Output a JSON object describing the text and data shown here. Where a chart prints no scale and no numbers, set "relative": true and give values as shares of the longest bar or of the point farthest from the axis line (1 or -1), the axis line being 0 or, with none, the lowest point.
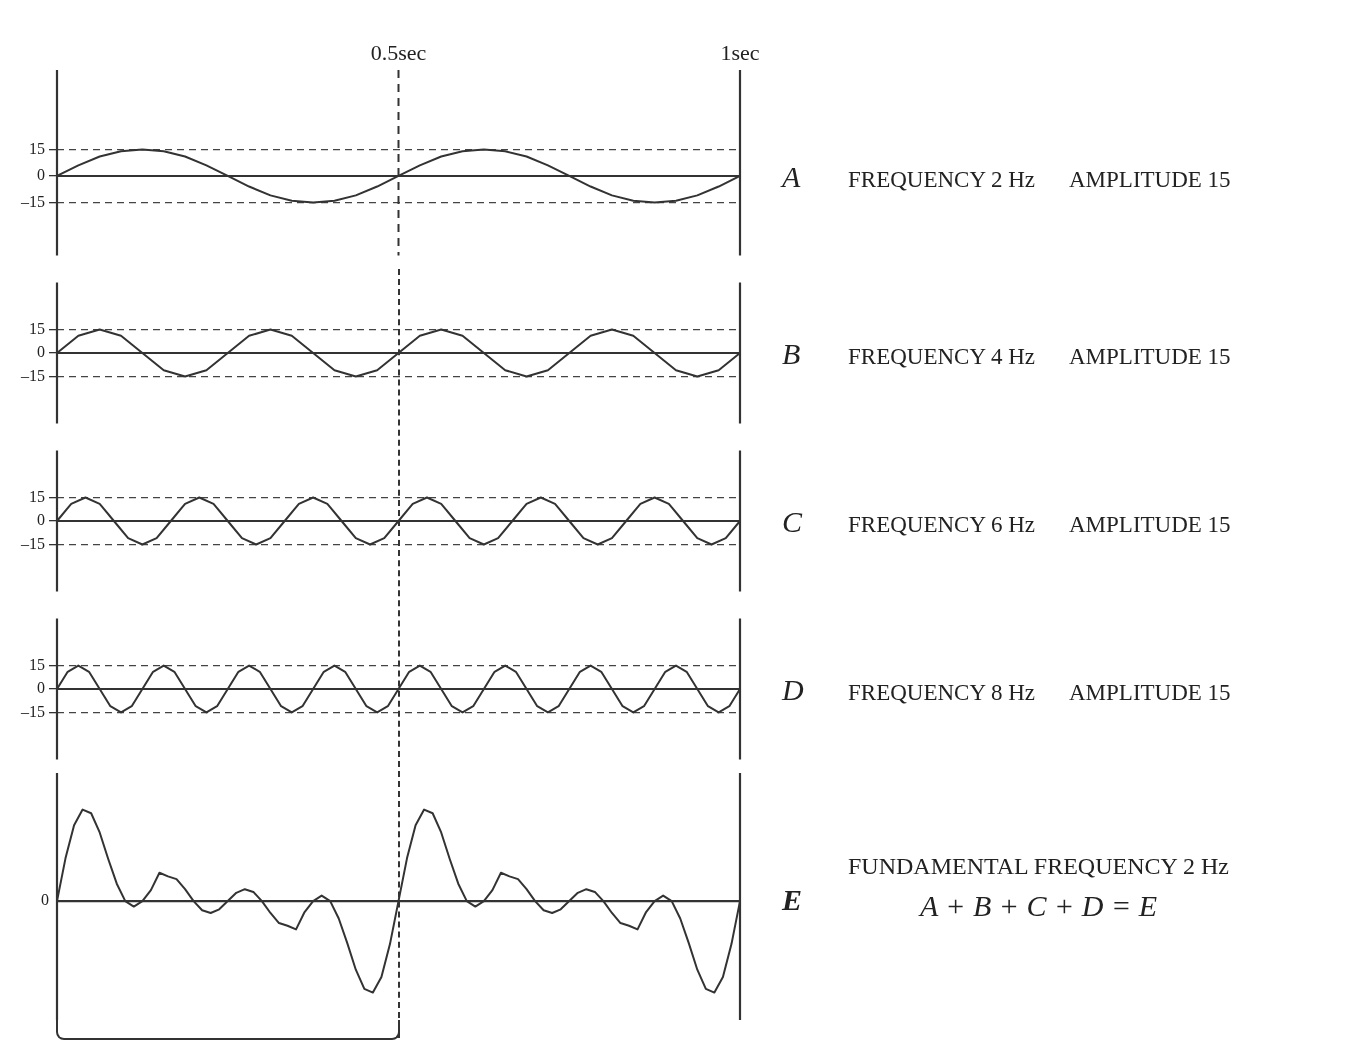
{
  "chart_data": [
    {
      "type": "line",
      "annotations": [
        "A",
        "FREQUENCY 2 Hz",
        "AMPLITUDE 15"
      ],
      "color": "#333333",
      "marker": "none",
      "line_style": "solid",
      "grid": "y",
      "xlim": [
        0,
        1
      ],
      "xticks": [
        {
          "value": 0.5,
          "label": "0.5sec"
        },
        {
          "value": 1,
          "label": "1sec"
        }
      ],
      "ylim": [
        -45,
        60
      ],
      "yticks": [
        {
          "value": -15,
          "label": "–15"
        },
        {
          "value": 0,
          "label": "0"
        },
        {
          "value": 15,
          "label": "15"
        }
      ],
      "ref_lines": [
        {
          "axis": "y",
          "value": 0,
          "line_style": "solid"
        },
        {
          "axis": "x",
          "value": 0.5,
          "line_style": "dashed"
        }
      ],
      "x": [
        0,
        0.03125,
        0.0625,
        0.09375,
        0.125,
        0.15625,
        0.1875,
        0.21875,
        0.25,
        0.28125,
        0.3125,
        0.34375,
        0.375,
        0.40625,
        0.4375,
        0.46875,
        0.5,
        0.53125,
        0.5625,
        0.59375,
        0.625,
        0.65625,
        0.6875,
        0.71875,
        0.75,
        0.78125,
        0.8125,
        0.84375,
        0.875,
        0.90625,
        0.9375,
        0.96875,
        1
      ],
      "values": [
        0,
        6,
        11,
        14,
        15,
        14,
        11,
        6,
        0,
        -6,
        -11,
        -14,
        -15,
        -14,
        -11,
        -6,
        0,
        6,
        11,
        14,
        15,
        14,
        11,
        6,
        0,
        -6,
        -11,
        -14,
        -15,
        -14,
        -11,
        -6,
        0
      ]
    },
    {
      "type": "line",
      "annotations": [
        "B",
        "FREQUENCY 4 Hz",
        "AMPLITUDE 15"
      ],
      "color": "#333333",
      "marker": "none",
      "line_style": "solid",
      "grid": "y",
      "tick_labels": "y",
      "ylim": [
        -45,
        45
      ],
      "yticks": [
        {
          "value": -15,
          "label": "–15"
        },
        {
          "value": 0,
          "label": "0"
        },
        {
          "value": 15,
          "label": "15"
        }
      ],
      "ref_lines": [
        {
          "axis": "y",
          "value": 0,
          "line_style": "solid"
        }
      ],
      "categories": [
        null,
        null,
        null,
        null,
        null,
        null,
        null,
        null,
        null,
        null,
        null,
        null,
        null,
        null,
        null,
        null,
        null,
        null,
        null,
        null,
        null,
        null,
        null,
        null,
        null,
        null,
        null,
        null,
        null,
        null,
        null,
        null,
        null
      ],
      "values": [
        0,
        11,
        15,
        11,
        0,
        -11,
        -15,
        -11,
        0,
        11,
        15,
        11,
        0,
        -11,
        -15,
        -11,
        0,
        11,
        15,
        11,
        0,
        -11,
        -15,
        -11,
        0,
        11,
        15,
        11,
        0,
        -11,
        -15,
        -11,
        0
      ]
    },
    {
      "type": "line",
      "annotations": [
        "C",
        "FREQUENCY 6 Hz",
        "AMPLITUDE 15"
      ],
      "color": "#333333",
      "marker": "none",
      "line_style": "solid",
      "grid": "y",
      "tick_labels": "y",
      "ylim": [
        -45,
        45
      ],
      "yticks": [
        {
          "value": -15,
          "label": "–15"
        },
        {
          "value": 0,
          "label": "0"
        },
        {
          "value": 15,
          "label": "15"
        }
      ],
      "ref_lines": [
        {
          "axis": "y",
          "value": 0,
          "line_style": "solid"
        }
      ],
      "categories": [
        null,
        null,
        null,
        null,
        null,
        null,
        null,
        null,
        null,
        null,
        null,
        null,
        null,
        null,
        null,
        null,
        null,
        null,
        null,
        null,
        null,
        null,
        null,
        null,
        null,
        null,
        null,
        null,
        null,
        null,
        null,
        null,
        null,
        null,
        null,
        null,
        null,
        null,
        null,
        null,
        null,
        null,
        null,
        null,
        null,
        null,
        null,
        null,
        null
      ],
      "values": [
        0,
        11,
        15,
        11,
        0,
        -11,
        -15,
        -11,
        0,
        11,
        15,
        11,
        0,
        -11,
        -15,
        -11,
        0,
        11,
        15,
        11,
        0,
        -11,
        -15,
        -11,
        0,
        11,
        15,
        11,
        0,
        -11,
        -15,
        -11,
        0,
        11,
        15,
        11,
        0,
        -11,
        -15,
        -11,
        0,
        11,
        15,
        11,
        0,
        -11,
        -15,
        -11,
        0
      ]
    },
    {
      "type": "line",
      "annotations": [
        "D",
        "FREQUENCY 8 Hz",
        "AMPLITUDE 15"
      ],
      "color": "#333333",
      "marker": "none",
      "line_style": "solid",
      "grid": "y",
      "tick_labels": "y",
      "ylim": [
        -45,
        45
      ],
      "yticks": [
        {
          "value": -15,
          "label": "–15"
        },
        {
          "value": 0,
          "label": "0"
        },
        {
          "value": 15,
          "label": "15"
        }
      ],
      "ref_lines": [
        {
          "axis": "y",
          "value": 0,
          "line_style": "solid"
        }
      ],
      "categories": [
        null,
        null,
        null,
        null,
        null,
        null,
        null,
        null,
        null,
        null,
        null,
        null,
        null,
        null,
        null,
        null,
        null,
        null,
        null,
        null,
        null,
        null,
        null,
        null,
        null,
        null,
        null,
        null,
        null,
        null,
        null,
        null,
        null,
        null,
        null,
        null,
        null,
        null,
        null,
        null,
        null,
        null,
        null,
        null,
        null,
        null,
        null,
        null,
        null,
        null,
        null,
        null,
        null,
        null,
        null,
        null,
        null,
        null,
        null,
        null,
        null,
        null,
        null,
        null,
        null
      ],
      "values": [
        0,
        11,
        15,
        11,
        0,
        -11,
        -15,
        -11,
        0,
        11,
        15,
        11,
        0,
        -11,
        -15,
        -11,
        0,
        11,
        15,
        11,
        0,
        -11,
        -15,
        -11,
        0,
        11,
        15,
        11,
        0,
        -11,
        -15,
        -11,
        0,
        11,
        15,
        11,
        0,
        -11,
        -15,
        -11,
        0,
        11,
        15,
        11,
        0,
        -11,
        -15,
        -11,
        0,
        11,
        15,
        11,
        0,
        -11,
        -15,
        -11,
        0,
        11,
        15,
        11,
        0,
        -11,
        -15,
        -11,
        0
      ]
    },
    {
      "type": "line",
      "annotations": [
        "E",
        "FUNDAMENTAL FREQUENCY 2 Hz",
        "A + B + C + D = E",
        "0"
      ],
      "color": "#333333",
      "marker": "none",
      "line_style": "solid",
      "relative": true,
      "tick_labels": false,
      "categories": [
        null,
        null,
        null,
        null,
        null,
        null,
        null,
        null,
        null,
        null,
        null,
        null,
        null,
        null,
        null,
        null,
        null,
        null,
        null,
        null,
        null,
        null,
        null,
        null,
        null,
        null,
        null,
        null,
        null,
        null,
        null,
        null,
        null,
        null,
        null,
        null,
        null,
        null,
        null,
        null,
        null,
        null,
        null,
        null,
        null,
        null,
        null,
        null,
        null,
        null,
        null,
        null,
        null,
        null,
        null,
        null,
        null,
        null,
        null,
        null,
        null,
        null,
        null,
        null,
        null,
        null,
        null,
        null,
        null,
        null,
        null,
        null,
        null,
        null,
        null,
        null,
        null,
        null,
        null,
        null,
        null
      ],
      "values": [
        0,
        0.47,
        0.83,
        1,
        0.96,
        0.75,
        0.46,
        0.19,
        0,
        -0.06,
        0,
        0.12,
        0.31,
        0.27,
        0.24,
        0.13,
        0,
        -0.1,
        -0.13,
        -0.09,
        0,
        0.09,
        0.13,
        0.1,
        0,
        -0.13,
        -0.24,
        -0.27,
        -0.31,
        -0.12,
        0,
        0.06,
        0,
        -0.19,
        -0.46,
        -0.75,
        -0.96,
        -1,
        -0.83,
        -0.47,
        0,
        0.47,
        0.83,
        1,
        0.96,
        0.75,
        0.46,
        0.19,
        0,
        -0.06,
        0,
        0.12,
        0.31,
        0.27,
        0.24,
        0.13,
        0,
        -0.1,
        -0.13,
        -0.09,
        0,
        0.09,
        0.13,
        0.1,
        0,
        -0.13,
        -0.24,
        -0.27,
        -0.31,
        -0.12,
        0,
        0.06,
        0,
        -0.19,
        -0.46,
        -0.75,
        -0.96,
        -1,
        -0.83,
        -0.47,
        0
      ]
    }
  ]
}
